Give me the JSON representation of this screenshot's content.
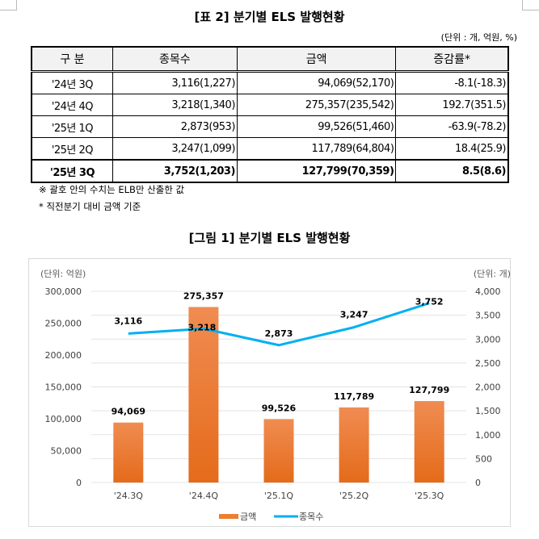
{
  "table": {
    "title": "[표 2] 분기별 ELS 발행현황",
    "unit": "(단위 : 개, 억원, %)",
    "headers": [
      "구 분",
      "종목수",
      "금액",
      "증감률*"
    ],
    "rows": [
      [
        "'24년 3Q",
        "3,116(1,227)",
        "94,069(52,170)",
        "-8.1(-18.3)"
      ],
      [
        "'24년 4Q",
        "3,218(1,340)",
        "275,357(235,542)",
        "192.7(351.5)"
      ],
      [
        "'25년 1Q",
        "2,873(953)",
        "99,526(51,460)",
        "-63.9(-78.2)"
      ],
      [
        "'25년 2Q",
        "3,247(1,099)",
        "117,789(64,804)",
        "18.4(25.9)"
      ],
      [
        "'25년 3Q",
        "3,752(1,203)",
        "127,799(70,359)",
        "8.5(8.6)"
      ]
    ],
    "notes": [
      "※ 괄호 안의 수치는 ELB만 산출한 값",
      "* 직전분기 대비 금액 기준"
    ]
  },
  "figure_title": "[그림 1] 분기별 ELS 발행현황",
  "chart_data": {
    "type": "bar+line",
    "categories": [
      "'24.3Q",
      "'24.4Q",
      "'25.1Q",
      "'25.2Q",
      "'25.3Q"
    ],
    "series": [
      {
        "name": "금액",
        "type": "bar",
        "axis": "left",
        "color": "#ed7d31",
        "values": [
          94069,
          275357,
          99526,
          117789,
          127799
        ],
        "labels": [
          "94,069",
          "275,357",
          "99,526",
          "117,789",
          "127,799"
        ]
      },
      {
        "name": "종목수",
        "type": "line",
        "axis": "right",
        "color": "#00b0f0",
        "values": [
          3116,
          3218,
          2873,
          3247,
          3752
        ],
        "labels": [
          "3,116",
          "3,218",
          "2,873",
          "3,247",
          "3,752"
        ]
      }
    ],
    "left_axis": {
      "label": "(단위: 억원)",
      "range": [
        0,
        300000
      ],
      "ticks": [
        "0",
        "50,000",
        "100,000",
        "150,000",
        "200,000",
        "250,000",
        "300,000"
      ]
    },
    "right_axis": {
      "label": "(단위: 개)",
      "range": [
        0,
        4000
      ],
      "ticks": [
        "0",
        "500",
        "1,000",
        "1,500",
        "2,000",
        "2,500",
        "3,000",
        "3,500",
        "4,000"
      ]
    },
    "grid": true,
    "legend": "bottom"
  }
}
